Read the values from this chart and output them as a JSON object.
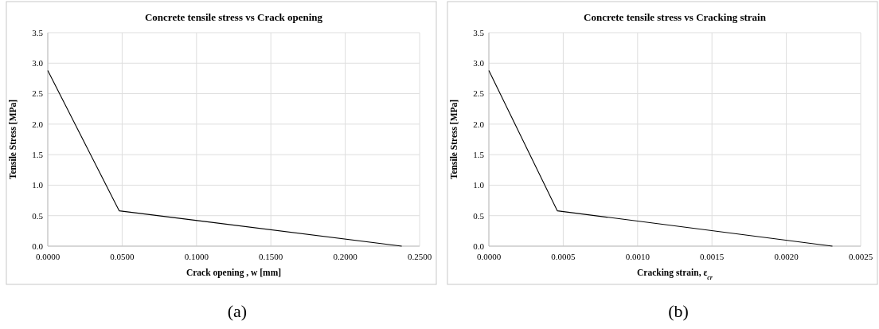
{
  "chart_data": [
    {
      "type": "line",
      "title": "Concrete tensile stress vs Crack opening",
      "xlabel": "Crack opening , w [mm]",
      "ylabel": "Tensile Stress [MPa]",
      "annotations": [
        "(a)"
      ],
      "x": [
        0,
        0.048,
        0.238
      ],
      "series": [
        {
          "color": "#000000",
          "values": [
            2.88,
            0.58,
            0
          ]
        }
      ],
      "xlim": [
        0,
        0.25
      ],
      "xticks": [
        {
          "value": 0,
          "label": "0.0000"
        },
        {
          "value": 0.05,
          "label": "0.0500"
        },
        {
          "value": 0.1,
          "label": "0.1000"
        },
        {
          "value": 0.15,
          "label": "0.1500"
        },
        {
          "value": 0.2,
          "label": "0.2000"
        },
        {
          "value": 0.25,
          "label": "0.2500"
        }
      ],
      "ylim": [
        0,
        3.5
      ],
      "yticks": [
        {
          "value": 0,
          "label": "0.0"
        },
        {
          "value": 0.5,
          "label": "0.5"
        },
        {
          "value": 1,
          "label": "1.0"
        },
        {
          "value": 1.5,
          "label": "1.5"
        },
        {
          "value": 2,
          "label": "2.0"
        },
        {
          "value": 2.5,
          "label": "2.5"
        },
        {
          "value": 3,
          "label": "3.0"
        },
        {
          "value": 3.5,
          "label": "3.5"
        }
      ],
      "grid": true
    },
    {
      "type": "line",
      "title": "Concrete tensile stress vs Cracking strain",
      "xlabel": "Cracking strain, ε$_{cr}$",
      "ylabel": "Tensile Stress [MPa]",
      "annotations": [
        "(b)"
      ],
      "x": [
        0,
        0.00046,
        0.00231
      ],
      "series": [
        {
          "color": "#000000",
          "values": [
            2.88,
            0.58,
            0
          ]
        }
      ],
      "xlim": [
        0,
        0.0025
      ],
      "xticks": [
        {
          "value": 0,
          "label": "0.0000"
        },
        {
          "value": 0.0005,
          "label": "0.0005"
        },
        {
          "value": 0.001,
          "label": "0.0010"
        },
        {
          "value": 0.0015,
          "label": "0.0015"
        },
        {
          "value": 0.002,
          "label": "0.0020"
        },
        {
          "value": 0.0025,
          "label": "0.0025"
        }
      ],
      "ylim": [
        0,
        3.5
      ],
      "yticks": [
        {
          "value": 0,
          "label": "0.0"
        },
        {
          "value": 0.5,
          "label": "0.5"
        },
        {
          "value": 1,
          "label": "1.0"
        },
        {
          "value": 1.5,
          "label": "1.5"
        },
        {
          "value": 2,
          "label": "2.0"
        },
        {
          "value": 2.5,
          "label": "2.5"
        },
        {
          "value": 3,
          "label": "3.0"
        },
        {
          "value": 3.5,
          "label": "3.5"
        }
      ],
      "grid": true
    }
  ]
}
